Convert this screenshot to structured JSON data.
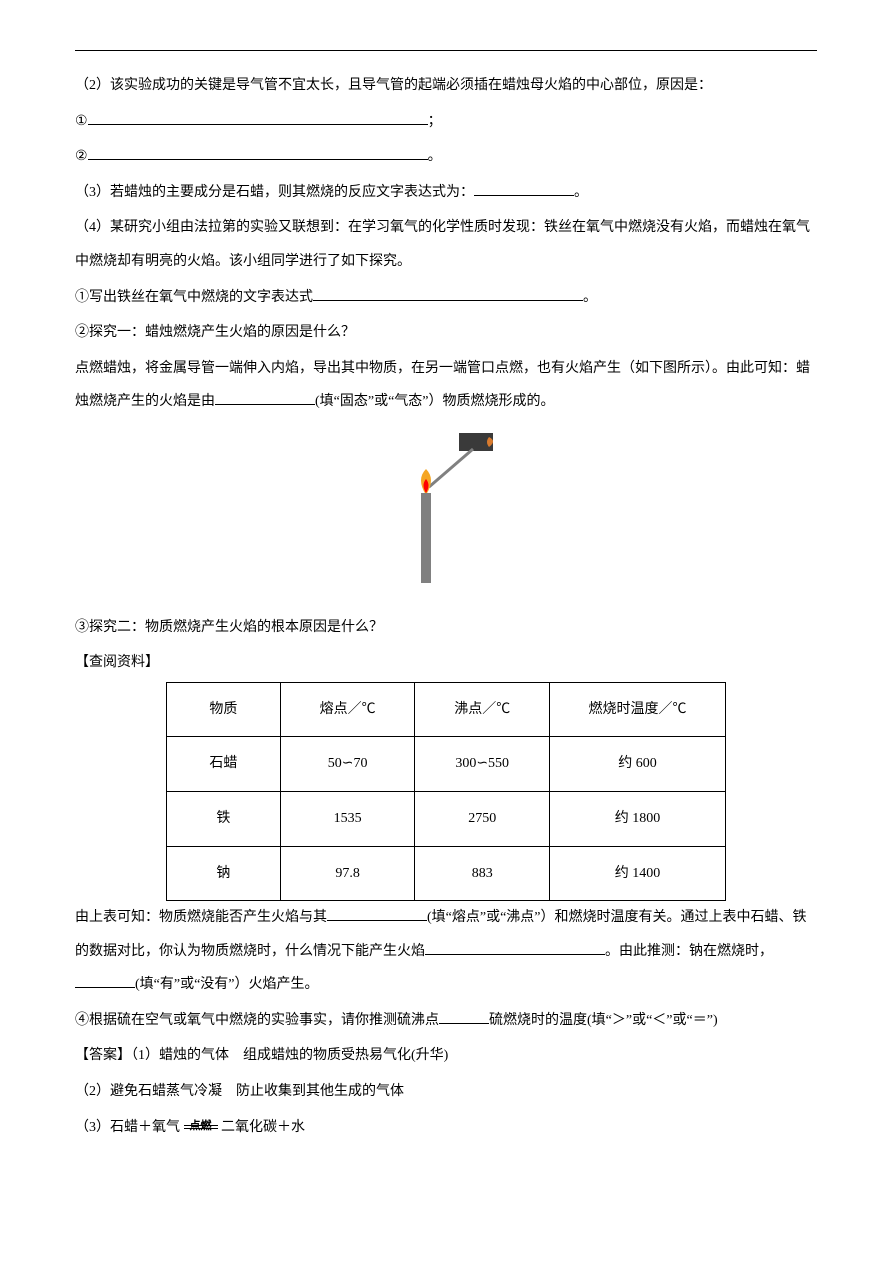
{
  "q2": {
    "stem": "（2）该实验成功的关键是导气管不宜太长，且导气管的起端必须插在蜡烛母火焰的中心部位，原因是：",
    "line1_prefix": "①",
    "line1_suffix": "；",
    "line2_prefix": "②",
    "line2_suffix": "。"
  },
  "q3": {
    "text_a": "（3）若蜡烛的主要成分是石蜡，则其燃烧的反应文字表达式为：",
    "text_b": "。"
  },
  "q4": {
    "stem": "（4）某研究小组由法拉第的实验又联想到：在学习氧气的化学性质时发现：铁丝在氧气中燃烧没有火焰，而蜡烛在氧气中燃烧却有明亮的火焰。该小组同学进行了如下探究。",
    "item1_a": "①写出铁丝在氧气中燃烧的文字表达式",
    "item1_b": "。",
    "item2_title": "②探究一：蜡烛燃烧产生火焰的原因是什么？",
    "item2_body_a": "点燃蜡烛，将金属导管一端伸入内焰，导出其中物质，在另一端管口点燃，也有火焰产生（如下图所示）。由此可知：蜡烛燃烧产生的火焰是由",
    "item2_body_b": "(填“固态”或“气态”）物质燃烧形成的。",
    "item3_title": "③探究二：物质燃烧产生火焰的根本原因是什么？",
    "lookup_label": "【查阅资料】",
    "after_a": "由上表可知：物质燃烧能否产生火焰与其",
    "after_b": "(填“熔点”或“沸点”）和燃烧时温度有关。通过上表中石蜡、铁的数据对比，你认为物质燃烧时，什么情况下能产生火焰",
    "after_c": "。由此推测：钠在燃烧时，",
    "after_d": "(填“有”或“没有”）火焰产生。",
    "item4_a": "④根据硫在空气或氧气中燃烧的实验事实，请你推测硫沸点",
    "item4_b": "硫燃烧时的温度(填“＞”或“＜”或“＝”)"
  },
  "figure": {
    "candle_body_color": "#808080",
    "candle_body_w": 10,
    "candle_body_h": 90,
    "flame_outer": "#f5a623",
    "flame_inner": "#ff0000",
    "tube_color": "#808080",
    "match_head": "#d97b2e",
    "match_stick": "#3a3a3a"
  },
  "table": {
    "headers": [
      "物质",
      "熔点／℃",
      "沸点／℃",
      "燃烧时温度／℃"
    ],
    "rows": [
      [
        "石蜡",
        "50∽70",
        "300∽550",
        "约 600"
      ],
      [
        "铁",
        "1535",
        "2750",
        "约 1800"
      ],
      [
        "钠",
        "97.8",
        "883",
        "约 1400"
      ]
    ],
    "col_widths": [
      "110px",
      "130px",
      "130px",
      "170px"
    ]
  },
  "answer": {
    "label": "【答案】",
    "a1": "（1）蜡烛的气体　组成蜡烛的物质受热易气化(升华)",
    "a2": "（2）避免石蜡蒸气冷凝　防止收集到其他生成的气体",
    "a3_prefix": "（3）石蜡＋氧气",
    "a3_cond": "点燃",
    "a3_suffix": "二氧化碳＋水"
  }
}
